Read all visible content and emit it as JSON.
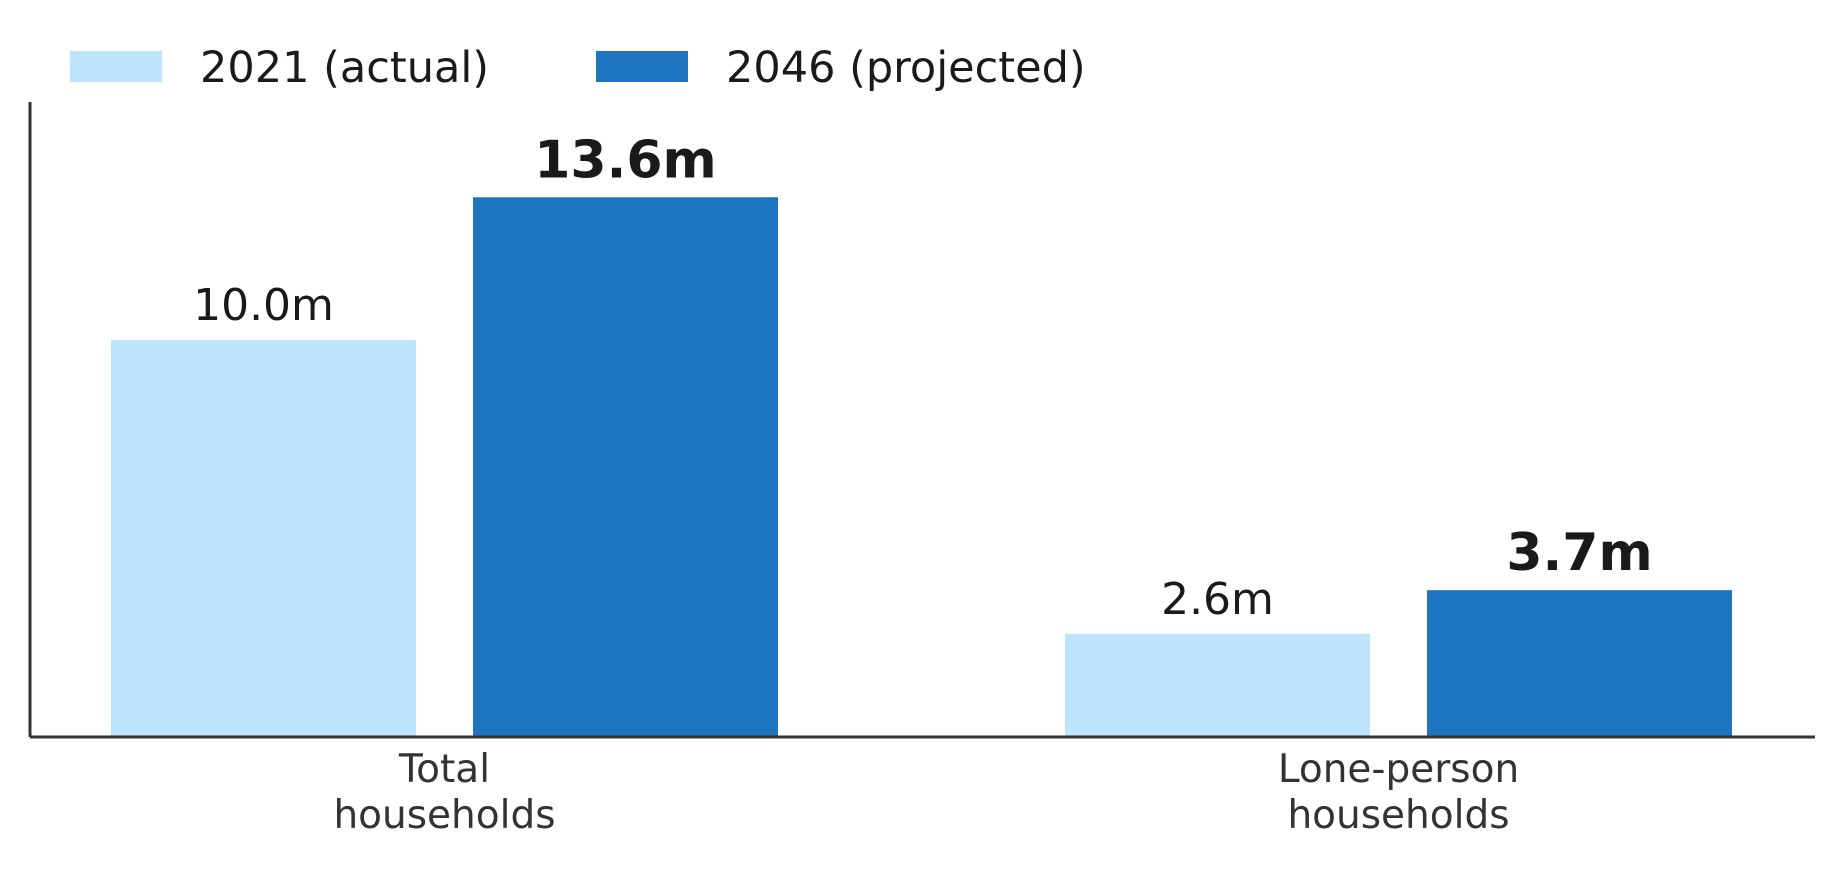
{
  "chart_data": {
    "type": "bar",
    "categories": [
      [
        "Total",
        "households"
      ],
      [
        "Lone-person",
        "households"
      ]
    ],
    "series": [
      {
        "name": "2021 (actual)",
        "color": "#bee3fc",
        "values": [
          10.0,
          2.6
        ],
        "labels": [
          "10.0m",
          "2.6m"
        ],
        "label_bold": false
      },
      {
        "name": "2046 (projected)",
        "color": "#1f74c0",
        "values": [
          13.6,
          3.7
        ],
        "labels": [
          "13.6m",
          "3.7m"
        ],
        "label_bold": true
      }
    ],
    "ylim": [
      0,
      16
    ],
    "legend_position": "top-left",
    "grid": false
  }
}
